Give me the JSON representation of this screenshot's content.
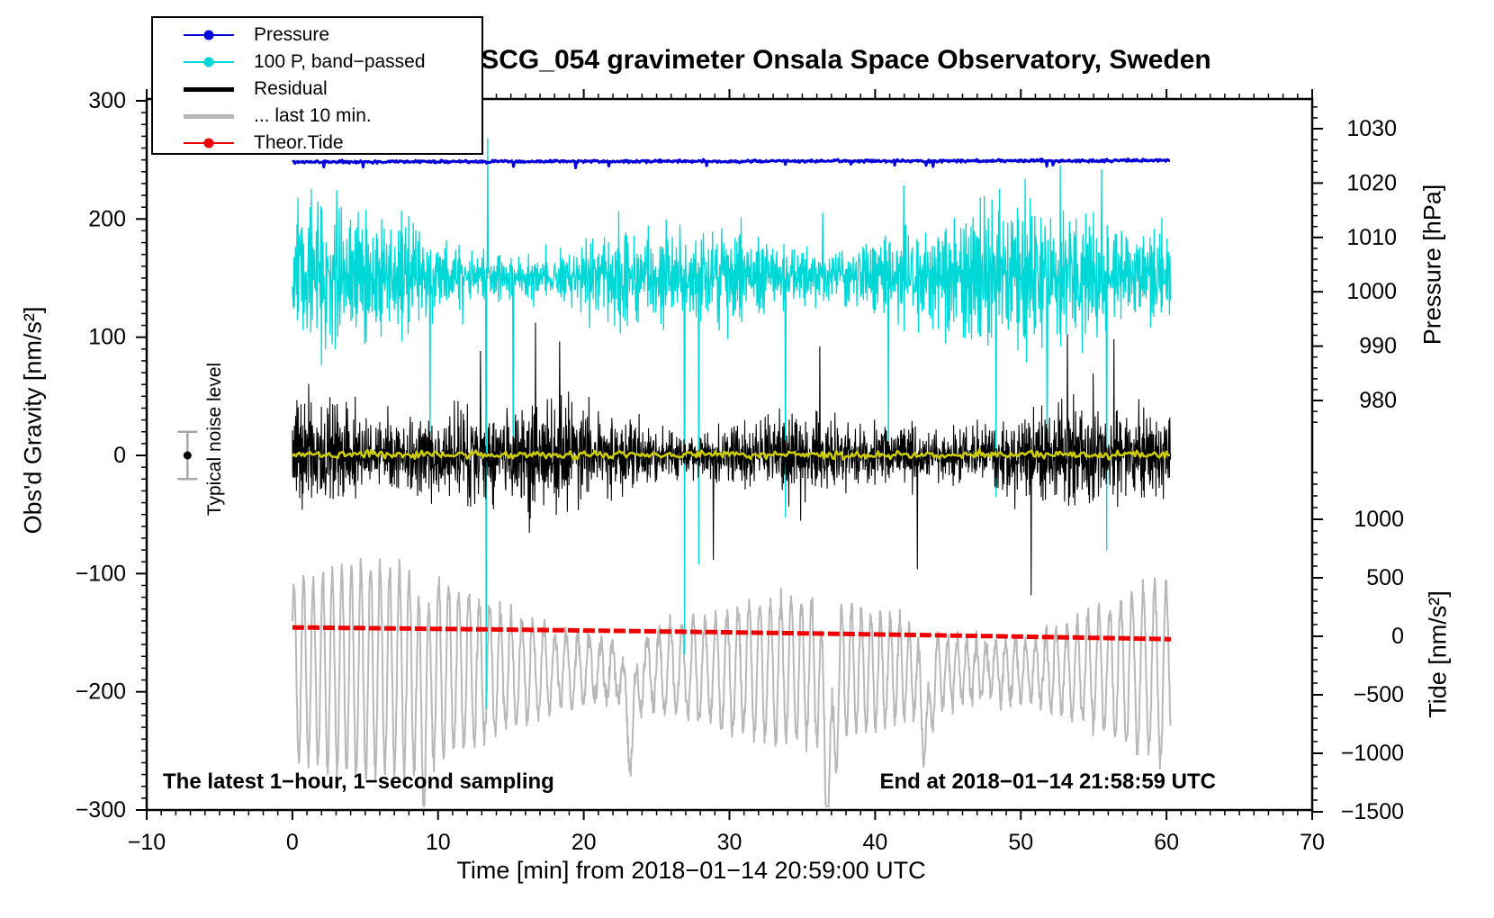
{
  "chart_data": {
    "type": "line",
    "title": "SCG_054 gravimeter Onsala Space Observatory, Sweden",
    "annotations": {
      "sampling": "The latest 1−hour, 1−second sampling",
      "end": "End at 2018−01−14 21:58:59 UTC"
    },
    "axes": {
      "bottom": {
        "title": "Time [min] from 2018−01−14 20:59:00 UTC",
        "range": [
          -10,
          70
        ],
        "major_ticks": [
          -10,
          0,
          10,
          20,
          30,
          40,
          50,
          60,
          70
        ],
        "tick_labels": [
          "−10",
          "0",
          "10",
          "20",
          "30",
          "40",
          "50",
          "60",
          "70"
        ],
        "minor_step": 1
      },
      "left": {
        "title": "Obs'd Gravity [nm/s²]",
        "range": [
          -300,
          300
        ],
        "major_ticks": [
          300,
          200,
          100,
          0,
          -100,
          -200,
          -300
        ],
        "tick_labels": [
          "300",
          "200",
          "100",
          "0",
          "−100",
          "−200",
          "−300"
        ],
        "minor_step": 10
      },
      "right_pressure": {
        "title": "Pressure [hPa]",
        "range": [
          975,
          1035
        ],
        "major_ticks": [
          1030,
          1020,
          1010,
          1000,
          990,
          980
        ],
        "tick_labels": [
          "1030",
          "1020",
          "1010",
          "1000",
          "990",
          "980"
        ],
        "minor_step": 2
      },
      "right_tide": {
        "title": "Tide [nm/s²]",
        "range": [
          -1500,
          1400
        ],
        "major_ticks": [
          1000,
          500,
          0,
          -500,
          -1000,
          -1500
        ],
        "tick_labels": [
          "1000",
          "500",
          "0",
          "−500",
          "−1000",
          "−1500"
        ],
        "minor_step": 100
      }
    },
    "legend": [
      {
        "label": "Pressure",
        "color": "#0000dc",
        "style": "line-dot"
      },
      {
        "label": "100 P, band−passed",
        "color": "#00d7d7",
        "style": "line-dot"
      },
      {
        "label": "Residual",
        "color": "#000000",
        "style": "thick-line"
      },
      {
        "label": "... last 10 min.",
        "color": "#b8b8b8",
        "style": "thick-line"
      },
      {
        "label": "Theor.Tide",
        "color": "#ee0000",
        "style": "line-dot"
      }
    ],
    "readings": {
      "time_span_min": [
        0,
        60.3
      ],
      "pressure_hPa_approx": 1024,
      "pressure_range_hPa": [
        1023.5,
        1024.5
      ],
      "bandpassed_center_nms2": 152,
      "bandpassed_typical_range_nms2": [
        95,
        215
      ],
      "bandpassed_extreme_spikes_nms2": [
        -215,
        270
      ],
      "residual_center_nms2": 0,
      "residual_typical_range_nms2": [
        -60,
        60
      ],
      "residual_extremes_nms2": [
        -120,
        125
      ],
      "smoothed_residual_nms2": 0,
      "last10_center_nms2": -185,
      "last10_typical_range_nms2": [
        -280,
        -95
      ],
      "tide_start_nms2": 75,
      "tide_end_nms2": -25
    },
    "noise_marker": {
      "label": "Typical noise level",
      "t": -7.2,
      "value": 0,
      "error": 20,
      "dot_color": "#000000",
      "bar_color": "#a8a8a8"
    },
    "series": [
      {
        "id": "last10",
        "label": "... last 10 min.",
        "axis": "gravity",
        "color": "#b8b8b8",
        "width": 2,
        "kind": "carrier",
        "t0": 0,
        "t1": 60.3,
        "step": 0.03,
        "seed": 505,
        "center": -182,
        "period": 0.72,
        "amp": 52,
        "jitter": 5,
        "ampmod": {
          "a1": 0.42,
          "p1": 4.6,
          "f1": 0.3,
          "a2": 0.3,
          "p2": 11.4,
          "f2": 1.6
        },
        "troughs": [
          [
            36.85,
            -95
          ],
          [
            23.2,
            -55
          ],
          [
            43.5,
            -50
          ],
          [
            9.0,
            -40
          ]
        ]
      },
      {
        "id": "bandpassed",
        "label": "100 P, band−passed",
        "axis": "gravity",
        "color": "#00d7d7",
        "width": 1.3,
        "kind": "oscnoise",
        "t0": 0,
        "t1": 60.3,
        "step": 0.035,
        "seed": 202,
        "center": 152,
        "sigma": 18,
        "ar": -0.42,
        "env": {
          "a1": 0.38,
          "p1": 3.7,
          "f1": 0.8,
          "a2": 0.28,
          "p2": 9.3,
          "f2": 2.1
        },
        "spikes": [
          [
            9.45,
            18
          ],
          [
            13.3,
            -214
          ],
          [
            13.42,
            268
          ],
          [
            15.15,
            -12
          ],
          [
            20.4,
            108
          ],
          [
            26.6,
            195
          ],
          [
            26.9,
            -168
          ],
          [
            27.9,
            -92
          ],
          [
            33.85,
            -52
          ],
          [
            36.4,
            205
          ],
          [
            40.9,
            -8
          ],
          [
            41.95,
            228
          ],
          [
            48.3,
            -35
          ],
          [
            51.8,
            -2
          ],
          [
            55.55,
            242
          ],
          [
            55.9,
            -80
          ]
        ]
      },
      {
        "id": "residual",
        "label": "Residual",
        "axis": "gravity",
        "color": "#000000",
        "width": 1.1,
        "kind": "oscnoise",
        "t0": 0,
        "t1": 60.3,
        "step": 0.028,
        "seed": 303,
        "center": 0,
        "sigma": 15,
        "ar": -0.34,
        "env": {
          "a1": 0.3,
          "p1": 2.9,
          "f1": 1.9,
          "a2": 0.22,
          "p2": 8.1,
          "f2": 0.4
        },
        "spikes": [
          [
            12.9,
            88
          ],
          [
            16.7,
            112
          ],
          [
            18.35,
            96
          ],
          [
            28.9,
            -88
          ],
          [
            36.2,
            92
          ],
          [
            42.9,
            -96
          ],
          [
            50.7,
            -118
          ],
          [
            53.2,
            102
          ],
          [
            56.4,
            98
          ]
        ]
      },
      {
        "id": "smoothed",
        "label": "",
        "axis": "gravity",
        "color": "#cccc00",
        "width": 2.6,
        "kind": "flat",
        "t0": 0,
        "t1": 60.3,
        "step": 0.12,
        "seed": 404,
        "baseline": 0.5,
        "drift": 0,
        "sigma": 1.6,
        "dip_rate": 0,
        "dip": 0
      },
      {
        "id": "tide",
        "label": "Theor.Tide",
        "axis": "tide",
        "color": "#ee0000",
        "width": 5,
        "kind": "trend",
        "t0": 0,
        "t1": 60.4,
        "step": 0.3,
        "coeffs": [
          76,
          -1.15,
          -0.0085
        ],
        "dash": [
          13,
          4
        ]
      },
      {
        "id": "pressure",
        "label": "Pressure",
        "axis": "pressure",
        "color": "#0000dc",
        "width": 3,
        "kind": "flat",
        "t0": 0,
        "t1": 60.3,
        "step": 0.06,
        "seed": 101,
        "baseline": 1023.9,
        "drift": 0.004,
        "sigma": 0.12,
        "dip_rate": 0.015,
        "dip": 0.8
      }
    ]
  }
}
